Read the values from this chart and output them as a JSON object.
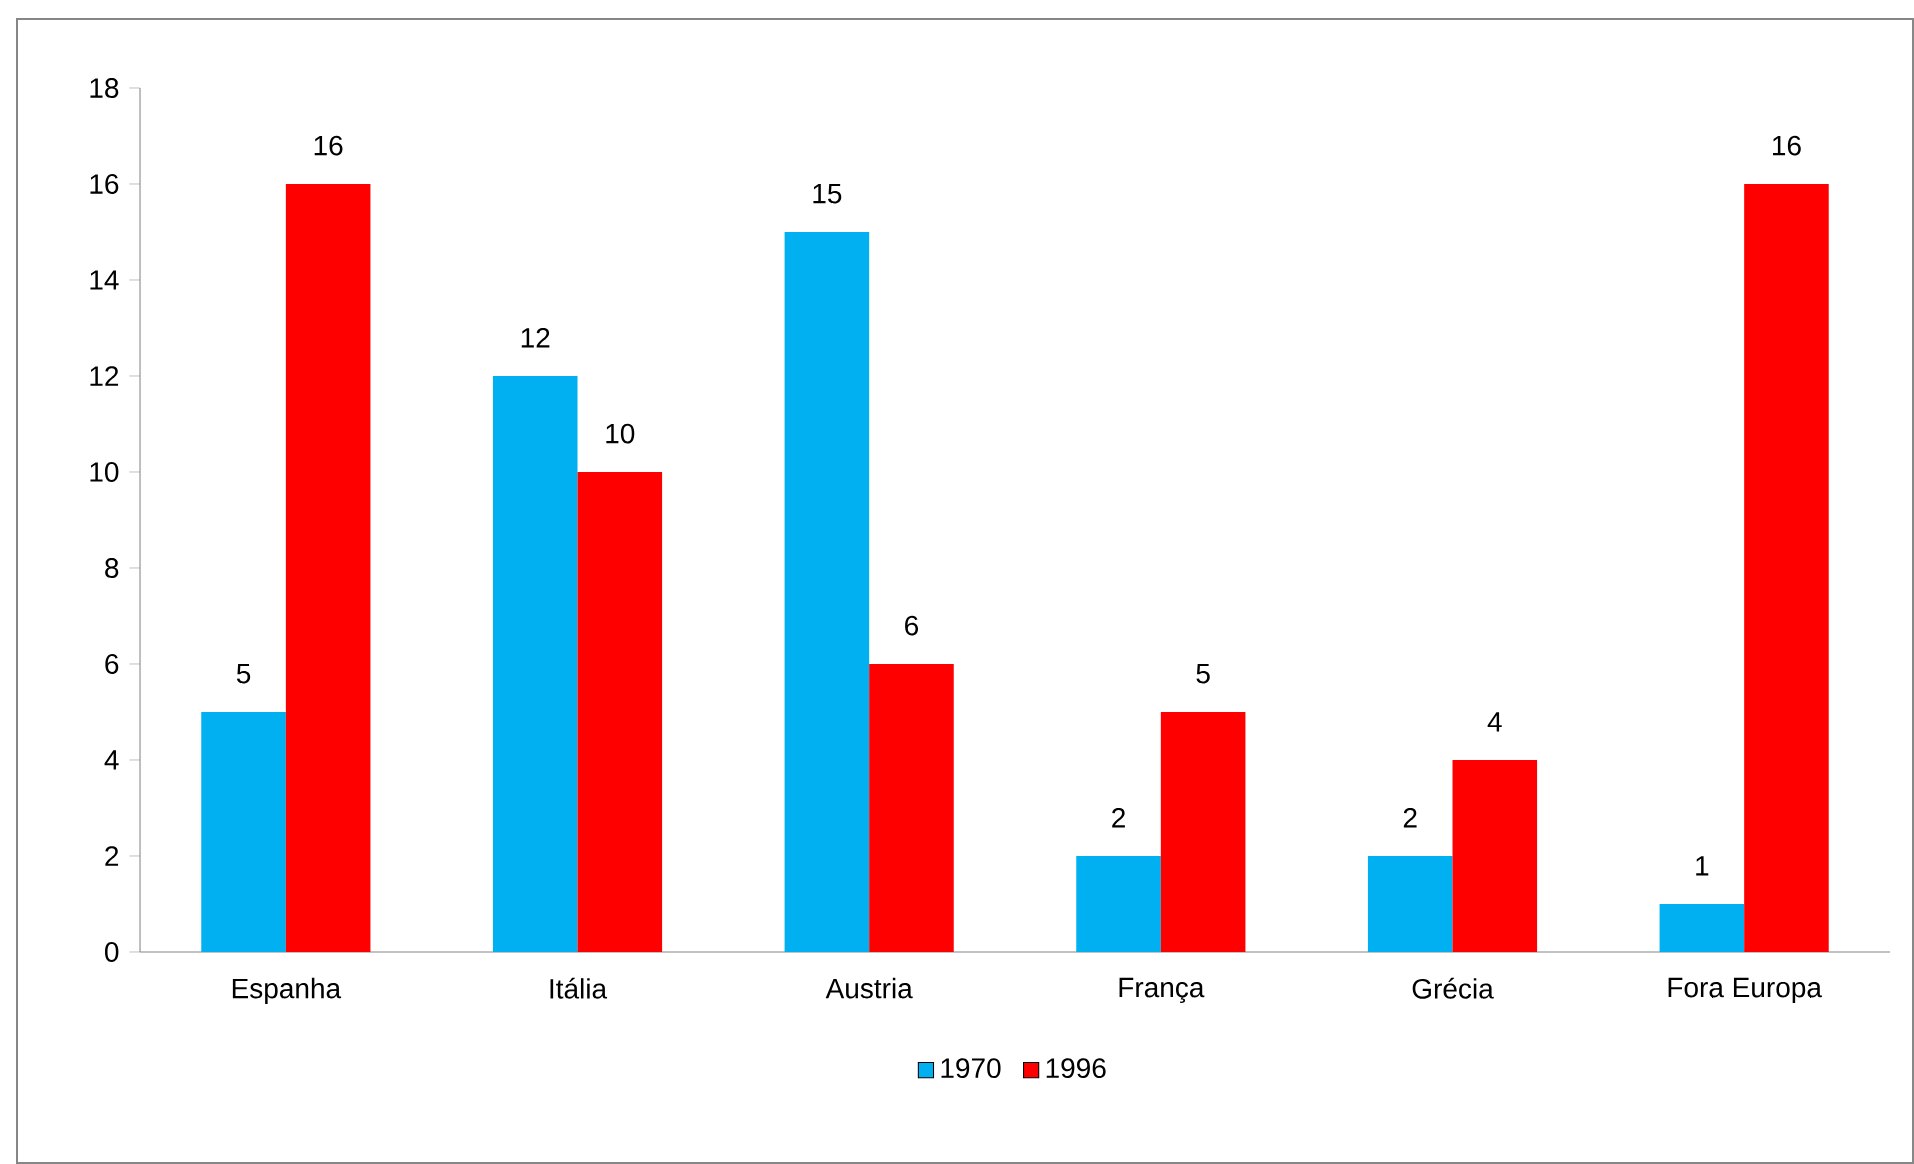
{
  "chart_data": {
    "type": "bar",
    "categories": [
      "Espanha",
      "Itália",
      "Austria",
      "França",
      "Grécia",
      "Fora Europa"
    ],
    "series": [
      {
        "name": "1970",
        "color": "#00b0f0",
        "values": [
          5,
          12,
          15,
          2,
          2,
          1
        ]
      },
      {
        "name": "1996",
        "color": "#ff0000",
        "values": [
          16,
          10,
          6,
          5,
          4,
          16
        ]
      }
    ],
    "ylim": [
      0,
      18
    ],
    "yticks": [
      0,
      2,
      4,
      6,
      8,
      10,
      12,
      14,
      16,
      18
    ],
    "data_labels": true,
    "legend": "bottom",
    "grid": false
  }
}
